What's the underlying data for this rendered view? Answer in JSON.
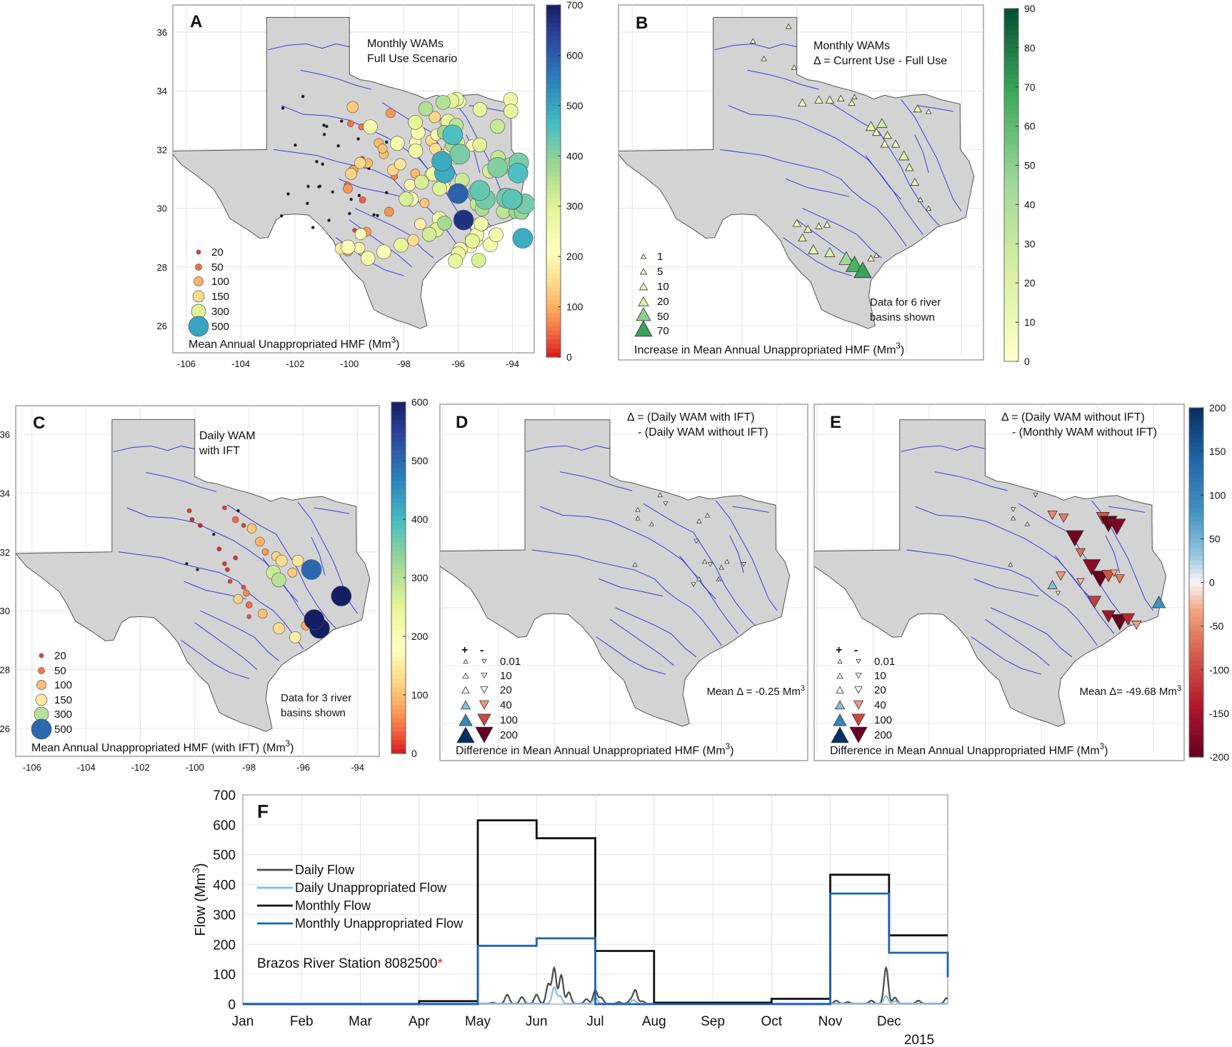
{
  "figure": {
    "colors": {
      "land": "#d3d3d3",
      "river": "#3a3cdc",
      "frame": "#8a8a8a",
      "grid": "#e4e4e4",
      "dot_black": "#111111",
      "daily_flow": "#4a4a4a",
      "daily_unapp": "#86bbe0",
      "monthly_flow": "#111111",
      "monthly_unapp": "#1f64b0",
      "star": "#e02020"
    },
    "panels": {
      "A": {
        "letter": "A",
        "title1": "Monthly WAMs",
        "title2": "Full Use Scenario",
        "bottom_label": "Mean Annual Unappropriated HMF (Mm",
        "bottom_sup": "3",
        "bottom_close": ")",
        "y_ticks": [
          "36",
          "34",
          "32",
          "30",
          "28",
          "26"
        ],
        "x_ticks": [
          "-106",
          "-104",
          "-102",
          "-100",
          "-98",
          "-96",
          "-94"
        ],
        "legend_values": [
          "20",
          "50",
          "100",
          "150",
          "300",
          "500"
        ],
        "colorbar_ticks": [
          "700",
          "600",
          "500",
          "400",
          "300",
          "200",
          "100",
          "0"
        ],
        "colorbar_range": [
          0,
          700
        ]
      },
      "B": {
        "letter": "B",
        "title1": "Monthly WAMs",
        "title2": "Δ = Current Use - Full Use",
        "note1": "Data for 6 river",
        "note2": "basins shown",
        "bottom_label": "Increase in Mean Annual Unappropriated HMF (Mm",
        "bottom_sup": "3",
        "bottom_close": ")",
        "legend_values": [
          "1",
          "5",
          "10",
          "20",
          "50",
          "70"
        ],
        "colorbar_ticks": [
          "90",
          "80",
          "70",
          "60",
          "50",
          "40",
          "30",
          "20",
          "10",
          "0"
        ],
        "colorbar_range": [
          0,
          90
        ]
      },
      "C": {
        "letter": "C",
        "title1": "Daily WAM",
        "title2": "with IFT",
        "note1": "Data for 3 river",
        "note2": "basins shown",
        "bottom_label": "Mean Annual Unappropriated HMF (with IFT) (Mm",
        "bottom_sup": "3",
        "bottom_close": ")",
        "y_ticks": [
          "36",
          "34",
          "32",
          "30",
          "28",
          "26"
        ],
        "x_ticks": [
          "-106",
          "-104",
          "-102",
          "-100",
          "-98",
          "-96",
          "-94"
        ],
        "legend_values": [
          "20",
          "50",
          "100",
          "150",
          "300",
          "500"
        ],
        "colorbar_ticks": [
          "600",
          "500",
          "400",
          "300",
          "200",
          "100",
          "0"
        ],
        "colorbar_range": [
          0,
          600
        ]
      },
      "D": {
        "letter": "D",
        "title1": "Δ = (Daily WAM with IFT)",
        "title2": "- (Daily WAM without IFT)",
        "mean_label": "Mean Δ = -0.25 Mm",
        "mean_sup": "3",
        "bottom_label": "Difference in Mean Annual Unappropriated HMF (Mm",
        "bottom_sup": "3",
        "bottom_close": ")",
        "legend_plus": "+",
        "legend_minus": "-",
        "legend_values": [
          "0.01",
          "10",
          "20",
          "40",
          "100",
          "200"
        ]
      },
      "E": {
        "letter": "E",
        "title1": "Δ = (Daily WAM without IFT)",
        "title2": "- (Monthly WAM without IFT)",
        "mean_label": "Mean Δ= -49.68 Mm",
        "mean_sup": "3",
        "bottom_label": "Difference in Mean Annual Unappropriated HMF (Mm",
        "bottom_sup": "3",
        "bottom_close": ")",
        "legend_plus": "+",
        "legend_minus": "-",
        "legend_values": [
          "0.01",
          "10",
          "20",
          "40",
          "100",
          "200"
        ],
        "colorbar_ticks": [
          "200",
          "150",
          "100",
          "50",
          "0",
          "-50",
          "-100",
          "-150",
          "-200"
        ],
        "colorbar_range": [
          -200,
          200
        ]
      }
    }
  },
  "chart_data": {
    "type": "line",
    "panel_letter": "F",
    "ylabel": "Flow (Mm",
    "ylabel_sup": "3",
    "ylabel_close": ")",
    "ylim": [
      0,
      700
    ],
    "y_ticks": [
      "700",
      "600",
      "500",
      "400",
      "300",
      "200",
      "100",
      "0"
    ],
    "categories": [
      "Jan",
      "Feb",
      "Mar",
      "Apr",
      "May",
      "Jun",
      "Jul",
      "Aug",
      "Sep",
      "Oct",
      "Nov",
      "Dec"
    ],
    "year_label": "2015",
    "station_label": "Brazos River Station 8082500",
    "station_mark": "*",
    "series": [
      {
        "name": "Daily Flow",
        "peaks": [
          [
            5.25,
            3
          ],
          [
            5.5,
            30
          ],
          [
            5.75,
            22
          ],
          [
            6.0,
            30
          ],
          [
            6.2,
            65
          ],
          [
            6.3,
            118
          ],
          [
            6.42,
            95
          ],
          [
            6.55,
            38
          ],
          [
            6.85,
            15
          ],
          [
            7.0,
            45
          ],
          [
            7.1,
            20
          ],
          [
            7.4,
            5
          ],
          [
            7.6,
            12
          ],
          [
            7.68,
            45
          ],
          [
            7.8,
            8
          ],
          [
            11.1,
            10
          ],
          [
            11.3,
            5
          ],
          [
            11.7,
            10
          ],
          [
            11.95,
            120
          ],
          [
            12.1,
            20
          ],
          [
            12.5,
            10
          ],
          [
            12.98,
            18
          ]
        ]
      },
      {
        "name": "Daily Unappropriated Flow",
        "peaks": [
          [
            6.3,
            55
          ],
          [
            6.4,
            25
          ],
          [
            7.0,
            20
          ],
          [
            7.65,
            12
          ],
          [
            11.95,
            25
          ],
          [
            12.1,
            8
          ]
        ]
      },
      {
        "name": "Monthly Flow",
        "values": [
          0,
          0,
          0,
          10,
          615,
          555,
          178,
          5,
          5,
          18,
          433,
          230
        ]
      },
      {
        "name": "Monthly Unappropriated Flow",
        "values": [
          0,
          0,
          0,
          0,
          195,
          220,
          0,
          0,
          0,
          0,
          370,
          172
        ]
      }
    ]
  }
}
